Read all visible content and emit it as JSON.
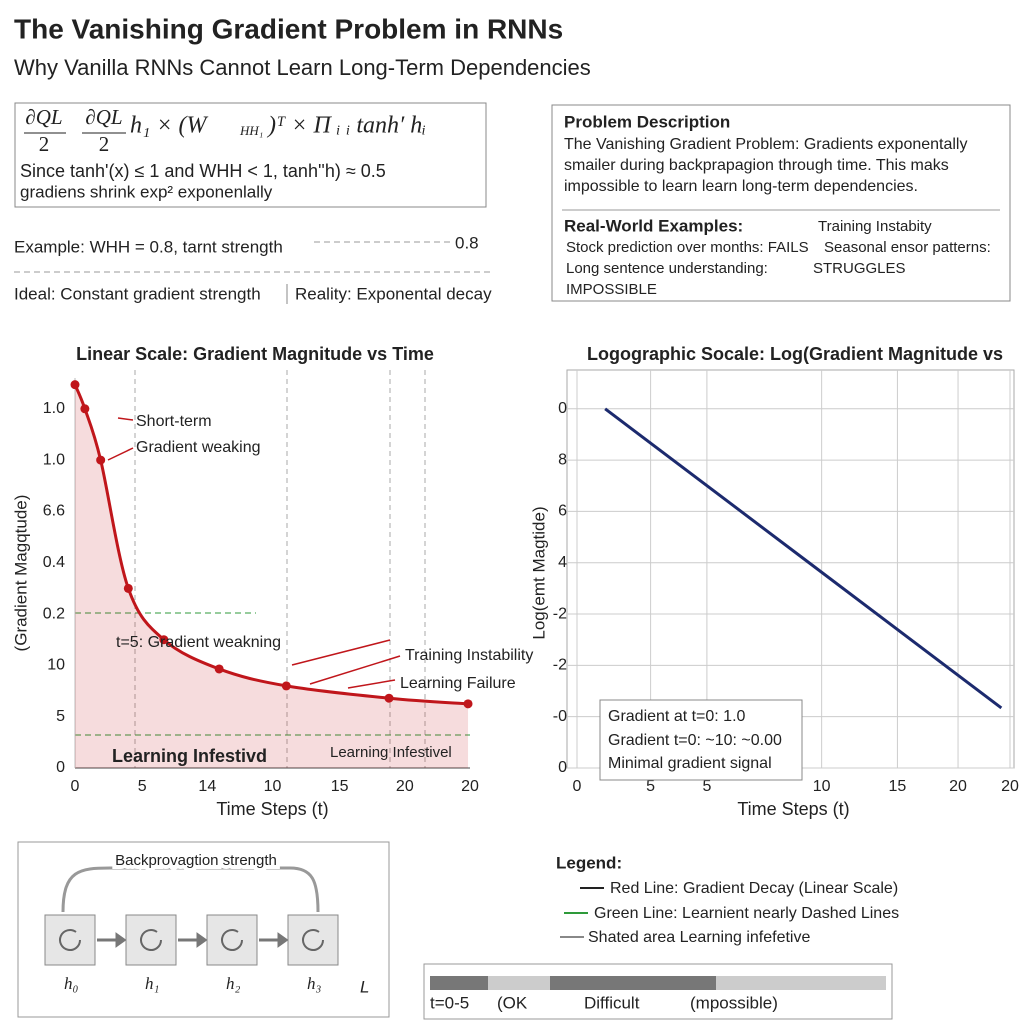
{
  "header": {
    "title": "The Vanishing Gradient Problem in RNNs",
    "subtitle": "Why Vanilla RNNs Cannot Learn Long-Term Dependencies"
  },
  "formula": {
    "numerator1": "∂QL",
    "denominator1": "2",
    "numerator2": "∂QL",
    "denominator2": "2",
    "rest": "h₁ × (W",
    "sub": "HH₁",
    "rest2": ")ᵀ × Π ᵢ ᵢ  tanh′ hᵢ",
    "line2": "Since tanh'(x) ≤ 1 and WHH < 1, tanh''h) ≈ 0.5",
    "line3": "gradiens shrink exp² exponenlally"
  },
  "example": {
    "text": "Example: WHH = 0.8, tarnt strength",
    "value": "0.8",
    "ideal": "Ideal: Constant gradient strength",
    "reality": "Reality: Exponental decay"
  },
  "problem": {
    "heading": "Problem Description",
    "lines": [
      "The Vanishing Gradient Problem: Gradients exponentally",
      "smailer during backprapagion through time. This maks",
      "impossible to learn learn long-term dependencies."
    ],
    "examples_heading": "Real-World Examples:",
    "examples": [
      "Training Instabity",
      "Stock prediction over months: FAILS",
      "Seasonal ensor patterns:",
      "Long sentence understanding:",
      "STRUGGLES",
      "IMPOSSIBLE"
    ]
  },
  "chart_data": [
    {
      "type": "line",
      "title": "Linear Scale: Gradient Magnitude vs Time",
      "x_label": "Time Steps (t)",
      "y_label": "(Gradient Magqtude)",
      "color": "#c0161b",
      "area": true,
      "grid": false,
      "x": [
        0,
        0.5,
        1.3,
        2.7,
        4.5,
        7.3,
        10.7,
        15.9,
        19.9
      ],
      "values": [
        7.47,
        7.0,
        6.0,
        3.5,
        2.5,
        1.93,
        1.6,
        1.36,
        1.25
      ],
      "xlim": [
        0,
        20
      ],
      "xticks": [
        0,
        {
          "value": 3.4,
          "label": "5"
        },
        {
          "value": 6.7,
          "label": "14"
        },
        10,
        {
          "value": 13.4,
          "label": "15"
        },
        {
          "value": 16.7,
          "label": "20"
        },
        20
      ],
      "ylim": [
        0,
        7.6
      ],
      "yticks": [
        0,
        {
          "value": 1,
          "label": "5"
        },
        {
          "value": 2,
          "label": "10"
        },
        {
          "value": 3,
          "label": "0.2"
        },
        {
          "value": 4,
          "label": "0.4"
        },
        {
          "value": 5,
          "label": "6.6"
        },
        {
          "value": 6,
          "label": "1.0"
        },
        {
          "value": 7,
          "label": "1.0"
        }
      ],
      "annotations": [
        "Short-term",
        "Gradient weaking",
        "t=5: Gradient weakning",
        "Training Instability",
        "Learning Failure",
        "Learning Infestivd",
        "Learning Infestivel"
      ]
    },
    {
      "type": "line",
      "title": "Logographic Socale: Log(Gradient Magnitude vs",
      "x_label": "Time Steps (t)",
      "y_label": "Log(emt Magtide)",
      "color": "#1c2a6e",
      "area": false,
      "grid": true,
      "x": [
        1.3,
        19.6
      ],
      "values": [
        7.0,
        1.17
      ],
      "xlim": [
        0,
        20
      ],
      "xticks": [
        0,
        {
          "value": 3.4,
          "label": "5"
        },
        {
          "value": 6.0,
          "label": "5"
        },
        {
          "value": 11.3,
          "label": "10"
        },
        {
          "value": 14.8,
          "label": "15"
        },
        {
          "value": 17.6,
          "label": "20"
        },
        20
      ],
      "ylim": [
        0,
        7.6
      ],
      "yticks": [
        0,
        {
          "value": 1,
          "label": "-0"
        },
        {
          "value": 2,
          "label": "-2"
        },
        {
          "value": 3,
          "label": "-2"
        },
        {
          "value": 4,
          "label": "4"
        },
        {
          "value": 5,
          "label": "6"
        },
        {
          "value": 6,
          "label": "8"
        },
        {
          "value": 7,
          "label": "0"
        }
      ],
      "annotations": [
        "Gradient at t=0: 1.0",
        "Gradient t=0: ~10: ~0.00",
        "Minimal gradient signal"
      ]
    }
  ],
  "legend": {
    "title": "Legend:",
    "items": [
      "Red Line: Gradient Decay (Linear Scale)",
      "Green Line: Learnient nearly Dashed Lines",
      "Shated area Learning infefetive"
    ]
  },
  "diagram": {
    "label": "Backprovagtion strength",
    "nodes": [
      "h₀",
      "h₁",
      "h₂",
      "h₃"
    ],
    "loss": "L"
  },
  "strength_bar": {
    "labels": [
      "t=0-5",
      "(OK",
      "Difficult",
      "(mpossible)"
    ]
  }
}
